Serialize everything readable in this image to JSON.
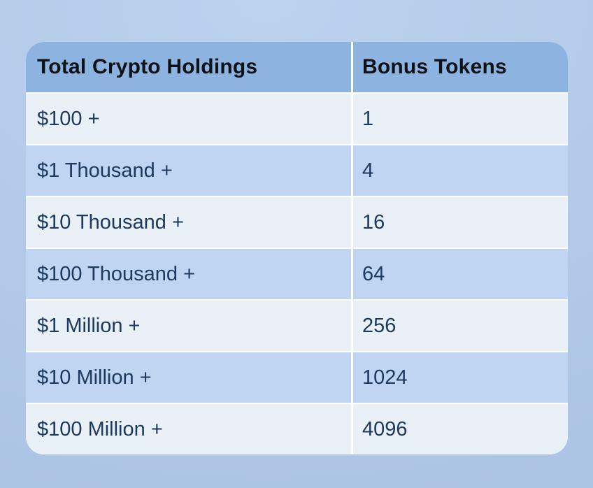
{
  "chart_data": {
    "type": "table",
    "columns": [
      "Total Crypto Holdings",
      "Bonus Tokens"
    ],
    "rows": [
      [
        "$100 +",
        "1"
      ],
      [
        "$1 Thousand +",
        "4"
      ],
      [
        "$10 Thousand +",
        "16"
      ],
      [
        "$100 Thousand +",
        "64"
      ],
      [
        "$1 Million +",
        "256"
      ],
      [
        "$10 Million +",
        "1024"
      ],
      [
        "$100 Million +",
        "4096"
      ]
    ]
  },
  "colors": {
    "page_background": "#b3cae8",
    "header_background": "#8db4e1",
    "row_light": "#eaf1f6",
    "row_blue": "#c0d5f1",
    "separator": "#ffffff",
    "header_text": "#0e1116",
    "row_text": "#1c3a60"
  }
}
